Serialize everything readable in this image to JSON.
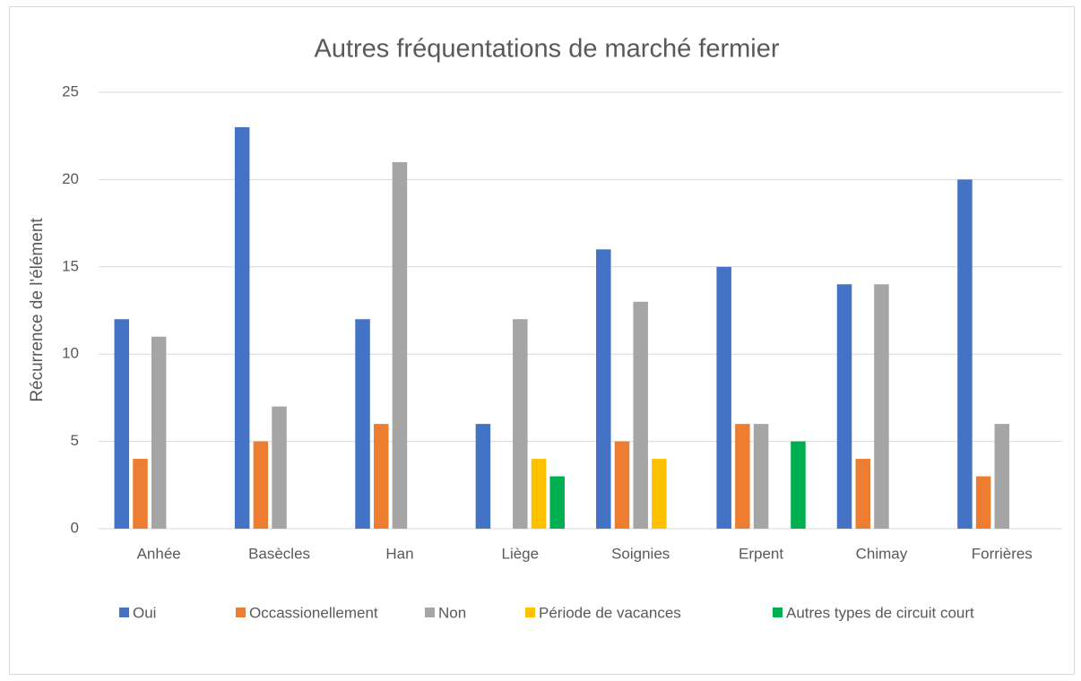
{
  "chart_data": {
    "type": "bar",
    "title": "Autres fréquentations de marché fermier",
    "y_label": "Récurrence de l'élément",
    "categories": [
      "Anhée",
      "Basècles",
      "Han",
      "Liège",
      "Soignies",
      "Erpent",
      "Chimay",
      "Forrières"
    ],
    "series": [
      {
        "name": "Oui",
        "color": "#4472c4",
        "values": [
          12,
          23,
          12,
          6,
          16,
          15,
          14,
          20
        ]
      },
      {
        "name": "Occassionellement",
        "color": "#ed7d31",
        "values": [
          4,
          5,
          6,
          0,
          5,
          6,
          4,
          3
        ]
      },
      {
        "name": "Non",
        "color": "#a5a5a5",
        "values": [
          11,
          7,
          21,
          12,
          13,
          6,
          14,
          6
        ]
      },
      {
        "name": "Période de vacances",
        "color": "#ffc000",
        "values": [
          0,
          0,
          0,
          4,
          4,
          0,
          0,
          0
        ]
      },
      {
        "name": "Autres types de circuit court",
        "color": "#00b050",
        "values": [
          0,
          0,
          0,
          3,
          0,
          5,
          0,
          0
        ]
      }
    ],
    "ylim": [
      0,
      25
    ],
    "yticks": [
      0,
      5,
      10,
      15,
      20,
      25
    ],
    "grid": true,
    "legend": "bottom"
  }
}
